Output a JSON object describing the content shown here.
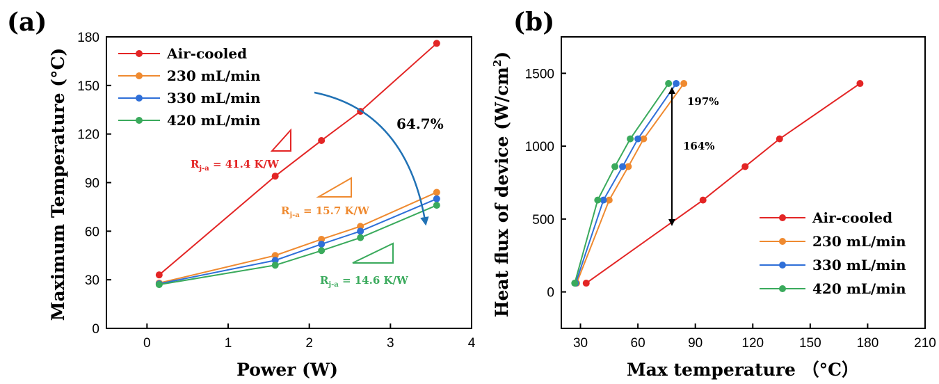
{
  "colors": {
    "air": "#e32525",
    "s230": "#ef8a30",
    "s330": "#2f6fd8",
    "s420": "#3aaa5c",
    "arrow": "#2172b5"
  },
  "chart_data": [
    {
      "panel_label": "(a)",
      "type": "line",
      "xlabel": "Power (W)",
      "ylabel": "Maximum Temperature (°C)",
      "xlim": [
        -0.5,
        4
      ],
      "ylim": [
        0,
        180
      ],
      "xticks": [
        0,
        1,
        2,
        3,
        4
      ],
      "yticks": [
        0,
        30,
        60,
        90,
        120,
        150,
        180
      ],
      "legend_position": "top-left",
      "series": [
        {
          "name": "Air-cooled",
          "color_key": "air",
          "x": [
            0.15,
            1.58,
            2.15,
            2.63,
            3.57
          ],
          "y": [
            33,
            94,
            116,
            134,
            176
          ]
        },
        {
          "name": "230 mL/min",
          "color_key": "s230",
          "x": [
            0.15,
            1.58,
            2.15,
            2.63,
            3.57
          ],
          "y": [
            28,
            45,
            55,
            63,
            84
          ]
        },
        {
          "name": "330 mL/min",
          "color_key": "s330",
          "x": [
            0.15,
            1.58,
            2.15,
            2.63,
            3.57
          ],
          "y": [
            27.5,
            42,
            52,
            60,
            80
          ]
        },
        {
          "name": "420 mL/min",
          "color_key": "s420",
          "x": [
            0.15,
            1.58,
            2.15,
            2.63,
            3.57
          ],
          "y": [
            27,
            39,
            48,
            56,
            76
          ]
        }
      ],
      "annotations": {
        "reduction": "64.7%",
        "r_air": {
          "label": "R",
          "sub": "j-a",
          "value": " = 41.4 K/W",
          "color_key": "air"
        },
        "r_230": {
          "label": "R",
          "sub": "j-a",
          "value": " = 15.7 K/W",
          "color_key": "s230"
        },
        "r_420": {
          "label": "R",
          "sub": "j-a",
          "value": " = 14.6 K/W",
          "color_key": "s420"
        }
      }
    },
    {
      "panel_label": "(b)",
      "type": "line",
      "xlabel": "Max temperature （°C）",
      "ylabel_main": "Heat flux of device (W/cm",
      "ylabel_sup": "2",
      "ylabel_end": ")",
      "xlim": [
        20,
        210
      ],
      "ylim": [
        -250,
        1750
      ],
      "xticks": [
        30,
        60,
        90,
        120,
        150,
        180,
        210
      ],
      "yticks": [
        0,
        500,
        1000,
        1500
      ],
      "legend_position": "bottom-right",
      "series": [
        {
          "name": "Air-cooled",
          "color_key": "air",
          "x": [
            33,
            94,
            116,
            134,
            176
          ],
          "y": [
            60,
            630,
            860,
            1050,
            1430
          ]
        },
        {
          "name": "230 mL/min",
          "color_key": "s230",
          "x": [
            28,
            45,
            55,
            63,
            84
          ],
          "y": [
            60,
            630,
            860,
            1050,
            1430
          ]
        },
        {
          "name": "330 mL/min",
          "color_key": "s330",
          "x": [
            27.5,
            42,
            52,
            60,
            80
          ],
          "y": [
            60,
            630,
            860,
            1050,
            1430
          ]
        },
        {
          "name": "420 mL/min",
          "color_key": "s420",
          "x": [
            27,
            39,
            48,
            56,
            76
          ],
          "y": [
            60,
            630,
            860,
            1050,
            1430
          ]
        }
      ],
      "annotations": {
        "increase_high": "197%",
        "increase_low": "164%",
        "arrow_x": 76,
        "arrow_y_range": [
          450,
          1430
        ]
      }
    }
  ]
}
